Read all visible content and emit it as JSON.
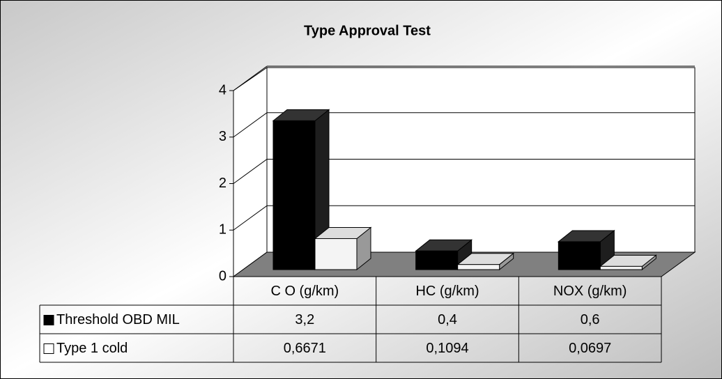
{
  "chart_data": {
    "type": "bar3d",
    "title": "Type Approval Test",
    "categories": [
      "C O (g/km)",
      "HC (g/km)",
      "NOX (g/km)"
    ],
    "series": [
      {
        "name": "Threshold OBD MIL",
        "color": "#000000",
        "values": [
          3.2,
          0.4,
          0.6
        ],
        "value_labels": [
          "3,2",
          "0,4",
          "0,6"
        ]
      },
      {
        "name": "Type 1 cold",
        "color": "#ffffff",
        "values": [
          0.6671,
          0.1094,
          0.0697
        ],
        "value_labels": [
          "0,6671",
          "0,1094",
          "0,0697"
        ]
      }
    ],
    "ylim": [
      0,
      4
    ],
    "yticks": [
      0,
      1,
      2,
      3,
      4
    ],
    "grid": true
  }
}
